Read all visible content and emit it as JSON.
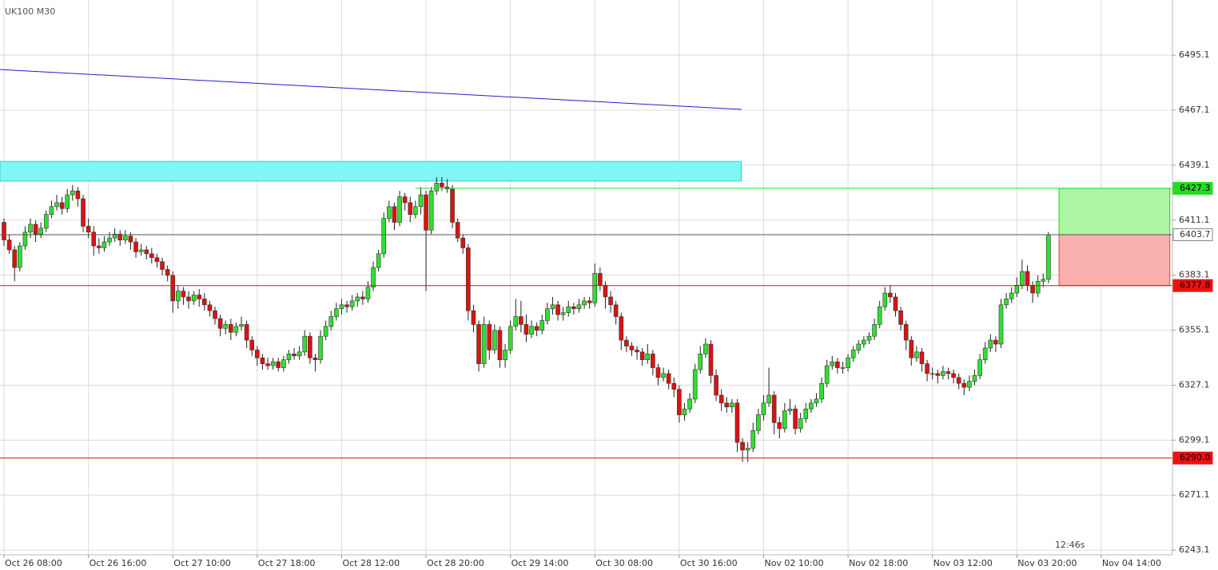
{
  "chart_data": {
    "type": "candlestick",
    "title": "UK100 M30",
    "timer": "12:46s",
    "up_color": "#2fe02f",
    "down_color": "#dd1111",
    "grid": true,
    "xlim": [
      -0.76,
      221.5
    ],
    "ylim": [
      6240.7,
      6523.2
    ],
    "yticks": [
      6495.1,
      6467.1,
      6439.1,
      6411.1,
      6383.1,
      6355.1,
      6327.1,
      6299.1,
      6271.1,
      6243.1
    ],
    "xticks": [
      {
        "value": 0,
        "label": "Oct 26 08:00"
      },
      {
        "value": 16,
        "label": "Oct 26 16:00"
      },
      {
        "value": 32,
        "label": "Oct 27 10:00"
      },
      {
        "value": 48,
        "label": "Oct 27 18:00"
      },
      {
        "value": 64,
        "label": "Oct 28 12:00"
      },
      {
        "value": 80,
        "label": "Oct 28 20:00"
      },
      {
        "value": 96,
        "label": "Oct 29 14:00"
      },
      {
        "value": 112,
        "label": "Oct 30 08:00"
      },
      {
        "value": 128,
        "label": "Oct 30 16:00"
      },
      {
        "value": 144,
        "label": "Nov 02 10:00"
      },
      {
        "value": 160,
        "label": "Nov 02 18:00"
      },
      {
        "value": 176,
        "label": "Nov 03 12:00"
      },
      {
        "value": 192,
        "label": "Nov 03 20:00"
      },
      {
        "value": 208,
        "label": "Nov 04 14:00"
      }
    ],
    "trendline": {
      "x": [
        -0.76,
        139.8
      ],
      "y": [
        6487.8,
        6467.5
      ],
      "color": "#2020cc"
    },
    "zone": {
      "x": [
        -0.76,
        139.8
      ],
      "y": [
        6431,
        6441
      ],
      "color": "#80f6f6",
      "border": "#33cccc"
    },
    "target": {
      "x": [
        200,
        221
      ],
      "y": [
        6403.7,
        6427.3
      ],
      "color": "#aef5a4",
      "border": "#22cc22"
    },
    "stop": {
      "x": [
        200,
        221
      ],
      "y": [
        6377.8,
        6403.7
      ],
      "color": "#fbb0b0",
      "border": "#dd4444"
    },
    "levels": [
      {
        "value": 6427.3,
        "from": 78,
        "color": "#22dd22",
        "label_fill": "#22dd22",
        "label_color": "#000000"
      },
      {
        "value": 6403.7,
        "from": -0.76,
        "color": "#555555",
        "label_fill": "#ffffff",
        "label_color": "#333333"
      },
      {
        "value": 6377.8,
        "from": -0.76,
        "color": "#dd1111",
        "label_fill": "#ee1111",
        "label_color": "#000000"
      },
      {
        "value": 6290,
        "label": "6290.0",
        "from": -0.76,
        "color": "#dd1111",
        "label_fill": "#ee1111",
        "label_color": "#000000"
      }
    ],
    "candles": [
      [
        6410,
        6412,
        6398,
        6401
      ],
      [
        6401,
        6404,
        6394,
        6396
      ],
      [
        6396,
        6398,
        6380,
        6387
      ],
      [
        6387,
        6400,
        6385,
        6398
      ],
      [
        6398,
        6408,
        6396,
        6405
      ],
      [
        6405,
        6412,
        6402,
        6409
      ],
      [
        6409,
        6411,
        6400,
        6404
      ],
      [
        6404,
        6410,
        6402,
        6407
      ],
      [
        6407,
        6416,
        6405,
        6414
      ],
      [
        6414,
        6421,
        6412,
        6418
      ],
      [
        6418,
        6424,
        6416,
        6420
      ],
      [
        6420,
        6423,
        6414,
        6417
      ],
      [
        6417,
        6427,
        6415,
        6424
      ],
      [
        6424,
        6429,
        6421,
        6426
      ],
      [
        6426,
        6428,
        6418,
        6422
      ],
      [
        6422,
        6424,
        6405,
        6408
      ],
      [
        6408,
        6412,
        6402,
        6405
      ],
      [
        6405,
        6408,
        6393,
        6398
      ],
      [
        6398,
        6402,
        6394,
        6397
      ],
      [
        6397,
        6403,
        6395,
        6400
      ],
      [
        6400,
        6405,
        6398,
        6402
      ],
      [
        6402,
        6407,
        6400,
        6404
      ],
      [
        6404,
        6406,
        6398,
        6401
      ],
      [
        6401,
        6406,
        6399,
        6403
      ],
      [
        6403,
        6405,
        6396,
        6400
      ],
      [
        6400,
        6402,
        6392,
        6395
      ],
      [
        6395,
        6399,
        6393,
        6396
      ],
      [
        6396,
        6398,
        6391,
        6394
      ],
      [
        6394,
        6397,
        6389,
        6392
      ],
      [
        6392,
        6394,
        6387,
        6390
      ],
      [
        6390,
        6392,
        6383,
        6386
      ],
      [
        6386,
        6388,
        6380,
        6383
      ],
      [
        6383,
        6385,
        6364,
        6370
      ],
      [
        6370,
        6378,
        6366,
        6375
      ],
      [
        6375,
        6377,
        6368,
        6372
      ],
      [
        6372,
        6375,
        6366,
        6370
      ],
      [
        6370,
        6375,
        6368,
        6373
      ],
      [
        6373,
        6376,
        6367,
        6371
      ],
      [
        6371,
        6374,
        6365,
        6368
      ],
      [
        6368,
        6370,
        6362,
        6365
      ],
      [
        6365,
        6367,
        6358,
        6361
      ],
      [
        6361,
        6363,
        6352,
        6356
      ],
      [
        6356,
        6360,
        6353,
        6358
      ],
      [
        6358,
        6361,
        6350,
        6354
      ],
      [
        6354,
        6359,
        6352,
        6357
      ],
      [
        6357,
        6362,
        6355,
        6358
      ],
      [
        6358,
        6360,
        6346,
        6350
      ],
      [
        6350,
        6352,
        6342,
        6345
      ],
      [
        6345,
        6347,
        6337,
        6341
      ],
      [
        6341,
        6343,
        6335,
        6338
      ],
      [
        6338,
        6341,
        6335,
        6337
      ],
      [
        6337,
        6341,
        6335,
        6339
      ],
      [
        6339,
        6341,
        6334,
        6336
      ],
      [
        6336,
        6342,
        6334,
        6340
      ],
      [
        6340,
        6345,
        6338,
        6343
      ],
      [
        6343,
        6346,
        6340,
        6342
      ],
      [
        6342,
        6347,
        6340,
        6344
      ],
      [
        6344,
        6355,
        6342,
        6352
      ],
      [
        6352,
        6354,
        6338,
        6341
      ],
      [
        6341,
        6343,
        6334,
        6340
      ],
      [
        6340,
        6355,
        6338,
        6352
      ],
      [
        6352,
        6360,
        6350,
        6357
      ],
      [
        6357,
        6365,
        6355,
        6362
      ],
      [
        6362,
        6369,
        6360,
        6366
      ],
      [
        6366,
        6371,
        6363,
        6368
      ],
      [
        6368,
        6370,
        6364,
        6367
      ],
      [
        6367,
        6373,
        6365,
        6370
      ],
      [
        6370,
        6374,
        6367,
        6372
      ],
      [
        6372,
        6375,
        6368,
        6371
      ],
      [
        6371,
        6380,
        6369,
        6377
      ],
      [
        6377,
        6390,
        6375,
        6387
      ],
      [
        6387,
        6396,
        6385,
        6394
      ],
      [
        6394,
        6415,
        6392,
        6412
      ],
      [
        6412,
        6421,
        6410,
        6418
      ],
      [
        6418,
        6420,
        6406,
        6410
      ],
      [
        6410,
        6426,
        6408,
        6423
      ],
      [
        6423,
        6425,
        6416,
        6420
      ],
      [
        6420,
        6423,
        6410,
        6414
      ],
      [
        6414,
        6421,
        6412,
        6418
      ],
      [
        6418,
        6428,
        6414,
        6424
      ],
      [
        6424,
        6426,
        6375,
        6406
      ],
      [
        6406,
        6428,
        6404,
        6426
      ],
      [
        6426,
        6433,
        6424,
        6430
      ],
      [
        6430,
        6433,
        6426,
        6428
      ],
      [
        6428,
        6432,
        6425,
        6427
      ],
      [
        6427,
        6429,
        6407,
        6410
      ],
      [
        6410,
        6412,
        6400,
        6402
      ],
      [
        6402,
        6404,
        6394,
        6397
      ],
      [
        6397,
        6399,
        6360,
        6365
      ],
      [
        6365,
        6368,
        6354,
        6358
      ],
      [
        6358,
        6360,
        6334,
        6338
      ],
      [
        6338,
        6362,
        6336,
        6358
      ],
      [
        6358,
        6360,
        6340,
        6345
      ],
      [
        6345,
        6358,
        6343,
        6355
      ],
      [
        6355,
        6357,
        6336,
        6340
      ],
      [
        6340,
        6348,
        6336,
        6345
      ],
      [
        6345,
        6360,
        6343,
        6357
      ],
      [
        6357,
        6371,
        6355,
        6362
      ],
      [
        6362,
        6370,
        6354,
        6358
      ],
      [
        6358,
        6363,
        6349,
        6353
      ],
      [
        6353,
        6360,
        6351,
        6357
      ],
      [
        6357,
        6359,
        6352,
        6355
      ],
      [
        6355,
        6363,
        6353,
        6360
      ],
      [
        6360,
        6369,
        6358,
        6366
      ],
      [
        6366,
        6372,
        6363,
        6368
      ],
      [
        6368,
        6370,
        6360,
        6363
      ],
      [
        6363,
        6367,
        6360,
        6364
      ],
      [
        6364,
        6370,
        6362,
        6367
      ],
      [
        6367,
        6369,
        6363,
        6366
      ],
      [
        6366,
        6371,
        6364,
        6368
      ],
      [
        6368,
        6372,
        6366,
        6370
      ],
      [
        6370,
        6372,
        6366,
        6369
      ],
      [
        6369,
        6389,
        6367,
        6384
      ],
      [
        6384,
        6387,
        6375,
        6378
      ],
      [
        6378,
        6380,
        6366,
        6372
      ],
      [
        6372,
        6375,
        6364,
        6368
      ],
      [
        6368,
        6370,
        6358,
        6362
      ],
      [
        6362,
        6364,
        6345,
        6350
      ],
      [
        6350,
        6352,
        6344,
        6347
      ],
      [
        6347,
        6349,
        6342,
        6345
      ],
      [
        6345,
        6347,
        6340,
        6344
      ],
      [
        6344,
        6346,
        6337,
        6340
      ],
      [
        6340,
        6348,
        6338,
        6343
      ],
      [
        6343,
        6345,
        6332,
        6336
      ],
      [
        6336,
        6338,
        6327,
        6331
      ],
      [
        6331,
        6336,
        6329,
        6333
      ],
      [
        6333,
        6335,
        6325,
        6328
      ],
      [
        6328,
        6331,
        6321,
        6325
      ],
      [
        6325,
        6327,
        6308,
        6312
      ],
      [
        6312,
        6318,
        6309,
        6315
      ],
      [
        6315,
        6323,
        6313,
        6320
      ],
      [
        6320,
        6338,
        6318,
        6335
      ],
      [
        6335,
        6347,
        6333,
        6343
      ],
      [
        6343,
        6351,
        6341,
        6348
      ],
      [
        6348,
        6350,
        6328,
        6332
      ],
      [
        6332,
        6335,
        6319,
        6322
      ],
      [
        6322,
        6325,
        6314,
        6318
      ],
      [
        6318,
        6321,
        6313,
        6316
      ],
      [
        6316,
        6320,
        6313,
        6318
      ],
      [
        6318,
        6320,
        6293,
        6298
      ],
      [
        6298,
        6300,
        6288,
        6294
      ],
      [
        6294,
        6298,
        6288,
        6295
      ],
      [
        6295,
        6308,
        6293,
        6304
      ],
      [
        6304,
        6315,
        6302,
        6312
      ],
      [
        6312,
        6322,
        6309,
        6318
      ],
      [
        6318,
        6336,
        6316,
        6322
      ],
      [
        6322,
        6324,
        6302,
        6308
      ],
      [
        6308,
        6311,
        6300,
        6305
      ],
      [
        6305,
        6318,
        6303,
        6314
      ],
      [
        6314,
        6320,
        6312,
        6315
      ],
      [
        6315,
        6317,
        6302,
        6305
      ],
      [
        6305,
        6313,
        6303,
        6310
      ],
      [
        6310,
        6318,
        6308,
        6315
      ],
      [
        6315,
        6320,
        6313,
        6318
      ],
      [
        6318,
        6323,
        6316,
        6320
      ],
      [
        6320,
        6331,
        6318,
        6328
      ],
      [
        6328,
        6340,
        6326,
        6337
      ],
      [
        6337,
        6342,
        6335,
        6339
      ],
      [
        6339,
        6341,
        6333,
        6336
      ],
      [
        6336,
        6339,
        6333,
        6336
      ],
      [
        6336,
        6343,
        6334,
        6341
      ],
      [
        6341,
        6347,
        6339,
        6345
      ],
      [
        6345,
        6350,
        6343,
        6348
      ],
      [
        6348,
        6352,
        6346,
        6350
      ],
      [
        6350,
        6354,
        6348,
        6352
      ],
      [
        6352,
        6361,
        6350,
        6358
      ],
      [
        6358,
        6370,
        6356,
        6367
      ],
      [
        6367,
        6377,
        6365,
        6374
      ],
      [
        6374,
        6378,
        6369,
        6372
      ],
      [
        6372,
        6374,
        6362,
        6365
      ],
      [
        6365,
        6367,
        6355,
        6358
      ],
      [
        6358,
        6360,
        6345,
        6350
      ],
      [
        6350,
        6352,
        6337,
        6341
      ],
      [
        6341,
        6347,
        6339,
        6344
      ],
      [
        6344,
        6346,
        6334,
        6338
      ],
      [
        6338,
        6340,
        6329,
        6333
      ],
      [
        6333,
        6336,
        6330,
        6333
      ],
      [
        6333,
        6335,
        6328,
        6332
      ],
      [
        6332,
        6337,
        6330,
        6334
      ],
      [
        6334,
        6336,
        6330,
        6333
      ],
      [
        6333,
        6335,
        6328,
        6331
      ],
      [
        6331,
        6333,
        6325,
        6328
      ],
      [
        6328,
        6330,
        6322,
        6326
      ],
      [
        6326,
        6332,
        6324,
        6329
      ],
      [
        6329,
        6335,
        6327,
        6332
      ],
      [
        6332,
        6343,
        6330,
        6340
      ],
      [
        6340,
        6349,
        6338,
        6346
      ],
      [
        6346,
        6353,
        6344,
        6350
      ],
      [
        6350,
        6352,
        6344,
        6348
      ],
      [
        6348,
        6371,
        6346,
        6368
      ],
      [
        6368,
        6374,
        6366,
        6371
      ],
      [
        6371,
        6377,
        6369,
        6374
      ],
      [
        6374,
        6382,
        6372,
        6378
      ],
      [
        6378,
        6391,
        6376,
        6385
      ],
      [
        6385,
        6388,
        6375,
        6378
      ],
      [
        6378,
        6380,
        6369,
        6374
      ],
      [
        6374,
        6383,
        6372,
        6380
      ],
      [
        6380,
        6384,
        6377,
        6381
      ],
      [
        6381,
        6405,
        6379,
        6403.7
      ]
    ]
  }
}
